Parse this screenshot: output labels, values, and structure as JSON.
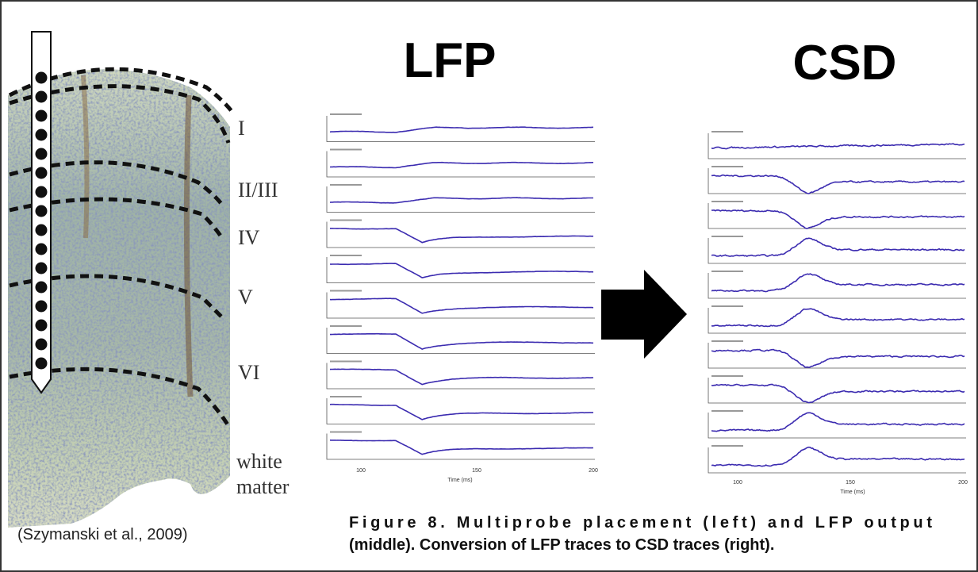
{
  "titles": {
    "lfp": "LFP",
    "csd": "CSD"
  },
  "layers": [
    "I",
    "II/III",
    "IV",
    "V",
    "VI"
  ],
  "white_matter": [
    "white",
    "matter"
  ],
  "citation": "(Szymanski et al., 2009)",
  "lfp_panel": {
    "x_label": "Time (ms)",
    "x_ticks": [
      "100",
      "150",
      "200"
    ]
  },
  "csd_panel": {
    "x_label": "Time (ms)",
    "x_ticks": [
      "100",
      "150",
      "200"
    ]
  },
  "caption": [
    "Figure 8. Multiprobe placement (left) and LFP output",
    "(middle). Conversion of LFP traces to CSD traces (right)."
  ]
}
